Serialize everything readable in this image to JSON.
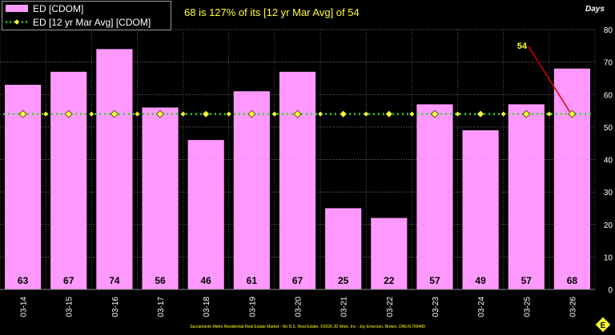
{
  "legend": {
    "bar_label": "ED [CDOM]",
    "line_label": "ED [12 yr Mar Avg] [CDOM]"
  },
  "headline": "68 is 127% of its [12 yr Mar Avg] of 54",
  "footer": "Sacramento Metro Residential Real Estate Market - No B.S. Real Estate, ©2026 JD Wise, Inc - Joy Emerson, Broker, DRE#1769489",
  "colors": {
    "bar": "#ff99ff",
    "avg_line": "#22dd22",
    "avg_marker": "#ffff33",
    "callout_line": "#dd0000",
    "callout_text": "#ffff33",
    "text": "#ffffff",
    "grid": "#888888",
    "background": "#000000"
  },
  "chart_data": {
    "type": "bar",
    "title": "",
    "xlabel": "",
    "ylabel": "Days",
    "ylim": [
      0,
      80
    ],
    "yticks": [
      0,
      10,
      20,
      30,
      40,
      50,
      60,
      70,
      80
    ],
    "grid": true,
    "legend_position": "top-left",
    "categories": [
      "03-14",
      "03-15",
      "03-16",
      "03-17",
      "03-18",
      "03-19",
      "03-20",
      "03-21",
      "03-22",
      "03-23",
      "03-24",
      "03-25",
      "03-26"
    ],
    "series": [
      {
        "name": "ED [CDOM]",
        "type": "bar",
        "values": [
          63,
          67,
          74,
          56,
          46,
          61,
          67,
          25,
          22,
          57,
          49,
          57,
          68
        ]
      },
      {
        "name": "ED [12 yr Mar Avg] [CDOM]",
        "type": "line",
        "values": [
          54,
          54,
          54,
          54,
          54,
          54,
          54,
          54,
          54,
          54,
          54,
          54,
          54
        ]
      }
    ],
    "annotations": [
      {
        "text": "54",
        "category": "03-26",
        "value": 54
      }
    ]
  }
}
